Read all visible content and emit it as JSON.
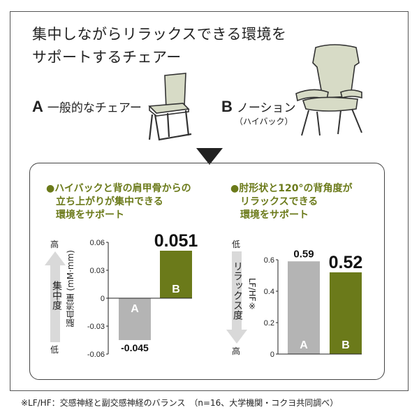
{
  "headline": [
    "集中しながらリラックスできる環境を",
    "サポートするチェアー"
  ],
  "chairs": [
    {
      "letter": "A",
      "label": "一般的なチェアー"
    },
    {
      "letter": "B",
      "label": "ノーション",
      "sub": "（ハイバック）"
    }
  ],
  "colors": {
    "gray": "#b4b4b4",
    "olive": "#6b7a1a",
    "title_green": "#6b7a1a",
    "arrow_gray": "#d9d9d9"
  },
  "left_section": {
    "title": [
      "●ハイバックと背の肩甲骨からの",
      "立ち上がりが集中できる",
      "環境をサポート"
    ],
    "scale_top": "高",
    "scale_bottom": "低",
    "scale_name": "集中度",
    "ylabel": "脳血流量 (mM·mm)"
  },
  "right_section": {
    "title": [
      "●肘形状と120°の背角度が",
      "リラックスできる",
      "環境をサポート"
    ],
    "scale_top": "低",
    "scale_bottom": "高",
    "scale_name": "リラックス度",
    "ylabel": "LF/HF※"
  },
  "footnote": "※LF/HF：交感神経と副交感神経のバランス　（n=16、大学機関・コクヨ共同調べ）",
  "chart_data": [
    {
      "type": "bar",
      "categories": [
        "A",
        "B"
      ],
      "values": [
        -0.045,
        0.051
      ],
      "value_labels": [
        "-0.045",
        "0.051"
      ],
      "ylabel": "脳血流量 (mM·mm)",
      "ylim": [
        -0.06,
        0.06
      ],
      "yticks": [
        "0.06",
        "0.03",
        "0",
        "-0.03",
        "-0.06"
      ],
      "ytick_values": [
        0.06,
        0.03,
        0,
        -0.03,
        -0.06
      ]
    },
    {
      "type": "bar",
      "categories": [
        "A",
        "B"
      ],
      "values": [
        0.59,
        0.52
      ],
      "value_labels": [
        "0.59",
        "0.52"
      ],
      "ylabel": "LF/HF※",
      "ylim": [
        0,
        0.6
      ],
      "yticks": [
        "0.6",
        "0.4",
        "0.2",
        "0"
      ],
      "ytick_values": [
        0.6,
        0.4,
        0.2,
        0
      ]
    }
  ]
}
